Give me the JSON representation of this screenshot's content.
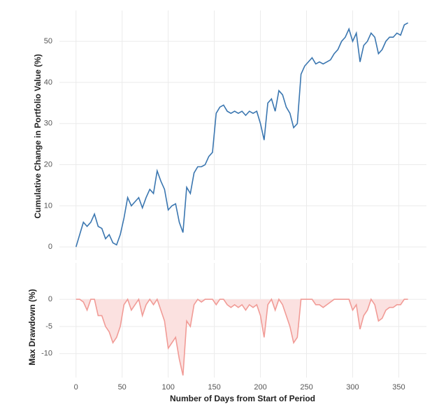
{
  "chart_data": [
    {
      "type": "line",
      "ylabel": "Cumulative Change in Portfolio Value (%)",
      "x": [
        0,
        4,
        8,
        12,
        16,
        20,
        24,
        28,
        32,
        36,
        40,
        44,
        48,
        52,
        56,
        60,
        64,
        68,
        72,
        76,
        80,
        84,
        88,
        92,
        96,
        100,
        104,
        108,
        112,
        116,
        120,
        124,
        128,
        132,
        136,
        140,
        144,
        148,
        152,
        156,
        160,
        164,
        168,
        172,
        176,
        180,
        184,
        188,
        192,
        196,
        200,
        204,
        208,
        212,
        216,
        220,
        224,
        228,
        232,
        236,
        240,
        244,
        248,
        252,
        256,
        260,
        264,
        268,
        272,
        276,
        280,
        284,
        288,
        292,
        296,
        300,
        304,
        308,
        312,
        316,
        320,
        324,
        328,
        332,
        336,
        340,
        344,
        348,
        352,
        356,
        360
      ],
      "series": [
        {
          "name": "Cumulative Change",
          "color": "#3a76b0",
          "values": [
            0,
            3,
            6,
            5,
            6,
            8,
            5,
            4.5,
            2,
            3,
            1,
            0.5,
            3,
            7,
            12,
            10,
            11,
            12,
            9.5,
            12,
            14,
            13,
            18.5,
            16,
            14,
            9,
            10,
            10.5,
            6,
            3.5,
            14.5,
            13,
            18,
            19.5,
            19.5,
            20,
            22,
            23,
            32.5,
            34,
            34.5,
            33,
            32.5,
            33,
            32.5,
            33,
            32,
            33,
            32.5,
            33,
            30,
            26,
            35,
            36,
            33,
            38,
            37,
            34,
            32.5,
            29,
            30,
            42,
            44,
            45,
            46,
            44.5,
            45,
            44.5,
            45,
            45.5,
            47,
            48,
            50,
            51,
            53,
            50,
            52,
            45,
            49,
            50,
            52,
            51,
            47,
            48,
            50,
            51,
            51,
            52,
            51.5,
            54,
            54.5
          ]
        }
      ],
      "xlim": [
        -18,
        380
      ],
      "xticks": [
        0,
        50,
        100,
        150,
        200,
        250,
        300,
        350
      ],
      "ylim": [
        -3.2,
        57.5
      ],
      "yticks": [
        0,
        10,
        20,
        30,
        40,
        50
      ],
      "grid": true
    },
    {
      "type": "area",
      "ylabel": "Max Drawdown (%)",
      "xlabel": "Number of Days from Start of Period",
      "x": [
        0,
        4,
        8,
        12,
        16,
        20,
        24,
        28,
        32,
        36,
        40,
        44,
        48,
        52,
        56,
        60,
        64,
        68,
        72,
        76,
        80,
        84,
        88,
        92,
        96,
        100,
        104,
        108,
        112,
        116,
        120,
        124,
        128,
        132,
        136,
        140,
        144,
        148,
        152,
        156,
        160,
        164,
        168,
        172,
        176,
        180,
        184,
        188,
        192,
        196,
        200,
        204,
        208,
        212,
        216,
        220,
        224,
        228,
        232,
        236,
        240,
        244,
        248,
        252,
        256,
        260,
        264,
        268,
        272,
        276,
        280,
        284,
        288,
        292,
        296,
        300,
        304,
        308,
        312,
        316,
        320,
        324,
        328,
        332,
        336,
        340,
        344,
        348,
        352,
        356,
        360
      ],
      "series": [
        {
          "name": "Max Drawdown",
          "color": "#f19b96",
          "fill": "#fbe1e0",
          "values": [
            0,
            0,
            -0.5,
            -2,
            0,
            0,
            -3,
            -3,
            -5,
            -6,
            -8,
            -7,
            -5,
            -1,
            0,
            -2,
            -1,
            0,
            -3,
            -1,
            0,
            -1,
            0,
            -2,
            -4,
            -9,
            -8,
            -7,
            -11,
            -14,
            -4,
            -5,
            -1,
            0,
            -0.5,
            0,
            0,
            0,
            -1,
            0,
            0,
            -1,
            -1.5,
            -1,
            -1.5,
            -1,
            -2,
            -1,
            -1.5,
            -1,
            -3,
            -7,
            -1,
            0,
            -2,
            0,
            -1,
            -3,
            -5,
            -8,
            -7,
            0,
            0,
            0,
            0,
            -1,
            -1,
            -1.5,
            -1,
            -0.5,
            0,
            0,
            0,
            0,
            0,
            -2,
            -1,
            -5.5,
            -3,
            -2,
            0,
            -1,
            -4,
            -3.5,
            -2,
            -1.5,
            -1.5,
            -1,
            -1,
            0,
            0
          ]
        }
      ],
      "xlim": [
        -18,
        380
      ],
      "xticks": [
        0,
        50,
        100,
        150,
        200,
        250,
        300,
        350
      ],
      "ylim": [
        -14.4,
        6.7
      ],
      "yticks": [
        -10,
        -5,
        0
      ],
      "grid": true
    }
  ]
}
